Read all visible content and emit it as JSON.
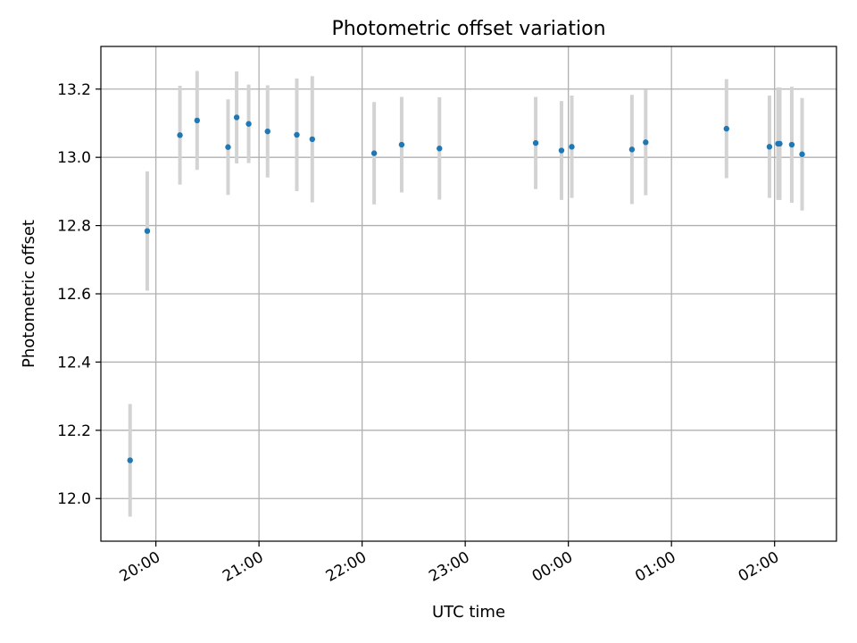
{
  "chart_data": {
    "type": "scatter",
    "title": "Photometric offset variation",
    "xlabel": "UTC time",
    "ylabel": "Photometric offset",
    "grid": true,
    "xlim": [
      "19:28",
      "02:36"
    ],
    "ylim": [
      11.875,
      13.325
    ],
    "x_ticks": [
      "20:00",
      "21:00",
      "22:00",
      "23:00",
      "00:00",
      "01:00",
      "02:00"
    ],
    "y_ticks": [
      "12.0",
      "12.2",
      "12.4",
      "12.6",
      "12.8",
      "13.0",
      "13.2"
    ],
    "series": [
      {
        "marker_color": "#1f77b4",
        "errorbar_color": "#d3d3d3",
        "points": [
          {
            "x": "19:45",
            "y": 12.112,
            "yerr": 0.165
          },
          {
            "x": "19:55",
            "y": 12.784,
            "yerr": 0.175
          },
          {
            "x": "20:14",
            "y": 13.065,
            "yerr": 0.145
          },
          {
            "x": "20:24",
            "y": 13.108,
            "yerr": 0.145
          },
          {
            "x": "20:42",
            "y": 13.03,
            "yerr": 0.14
          },
          {
            "x": "20:47",
            "y": 13.117,
            "yerr": 0.135
          },
          {
            "x": "20:54",
            "y": 13.098,
            "yerr": 0.115
          },
          {
            "x": "21:05",
            "y": 13.076,
            "yerr": 0.135
          },
          {
            "x": "21:22",
            "y": 13.066,
            "yerr": 0.165
          },
          {
            "x": "21:31",
            "y": 13.053,
            "yerr": 0.185
          },
          {
            "x": "22:07",
            "y": 13.012,
            "yerr": 0.15
          },
          {
            "x": "22:23",
            "y": 13.037,
            "yerr": 0.14
          },
          {
            "x": "22:45",
            "y": 13.026,
            "yerr": 0.15
          },
          {
            "x": "23:41",
            "y": 13.042,
            "yerr": 0.135
          },
          {
            "x": "23:56",
            "y": 13.02,
            "yerr": 0.145
          },
          {
            "x": "00:02",
            "y": 13.031,
            "yerr": 0.15
          },
          {
            "x": "00:37",
            "y": 13.023,
            "yerr": 0.16
          },
          {
            "x": "00:45",
            "y": 13.044,
            "yerr": 0.155
          },
          {
            "x": "01:32",
            "y": 13.084,
            "yerr": 0.145
          },
          {
            "x": "01:57",
            "y": 13.031,
            "yerr": 0.15
          },
          {
            "x": "02:02",
            "y": 13.04,
            "yerr": 0.165
          },
          {
            "x": "02:03",
            "y": 13.04,
            "yerr": 0.165
          },
          {
            "x": "02:10",
            "y": 13.037,
            "yerr": 0.17
          },
          {
            "x": "02:16",
            "y": 13.009,
            "yerr": 0.165
          }
        ]
      }
    ]
  }
}
